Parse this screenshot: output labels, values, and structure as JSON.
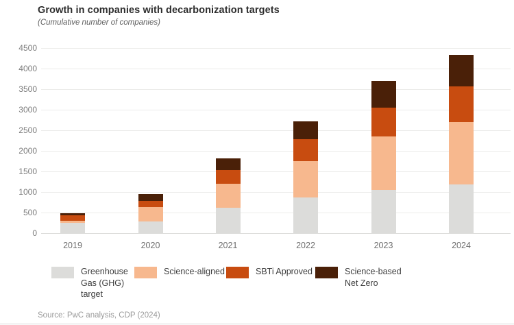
{
  "header": {
    "title": "Growth in companies with decarbonization targets",
    "subtitle": "(Cumulative number of companies)"
  },
  "chart_data": {
    "type": "bar",
    "stacked": true,
    "title": "Growth in companies with decarbonization targets",
    "subtitle": "(Cumulative number of companies)",
    "categories": [
      "2019",
      "2020",
      "2021",
      "2022",
      "2023",
      "2024"
    ],
    "series": [
      {
        "name": "Greenhouse Gas (GHG) target",
        "color": "#dcdcda",
        "values": [
          250,
          280,
          610,
          860,
          1055,
          1180
        ]
      },
      {
        "name": "Science-aligned",
        "color": "#f7b88e",
        "values": [
          50,
          360,
          595,
          890,
          1290,
          1525
        ]
      },
      {
        "name": "SBTi Approved",
        "color": "#c84c10",
        "values": [
          135,
          150,
          325,
          540,
          710,
          860
        ]
      },
      {
        "name": "Science-based Net Zero",
        "color": "#4a2008",
        "values": [
          50,
          165,
          290,
          425,
          640,
          765
        ]
      }
    ],
    "ylim": [
      0,
      4500
    ],
    "yticks": [
      0,
      500,
      1000,
      1500,
      2000,
      2500,
      3000,
      3500,
      4000,
      4500
    ],
    "grid": "horizontal",
    "legend_position": "bottom"
  },
  "footer": {
    "source": "Source: PwC analysis, CDP (2024)"
  }
}
